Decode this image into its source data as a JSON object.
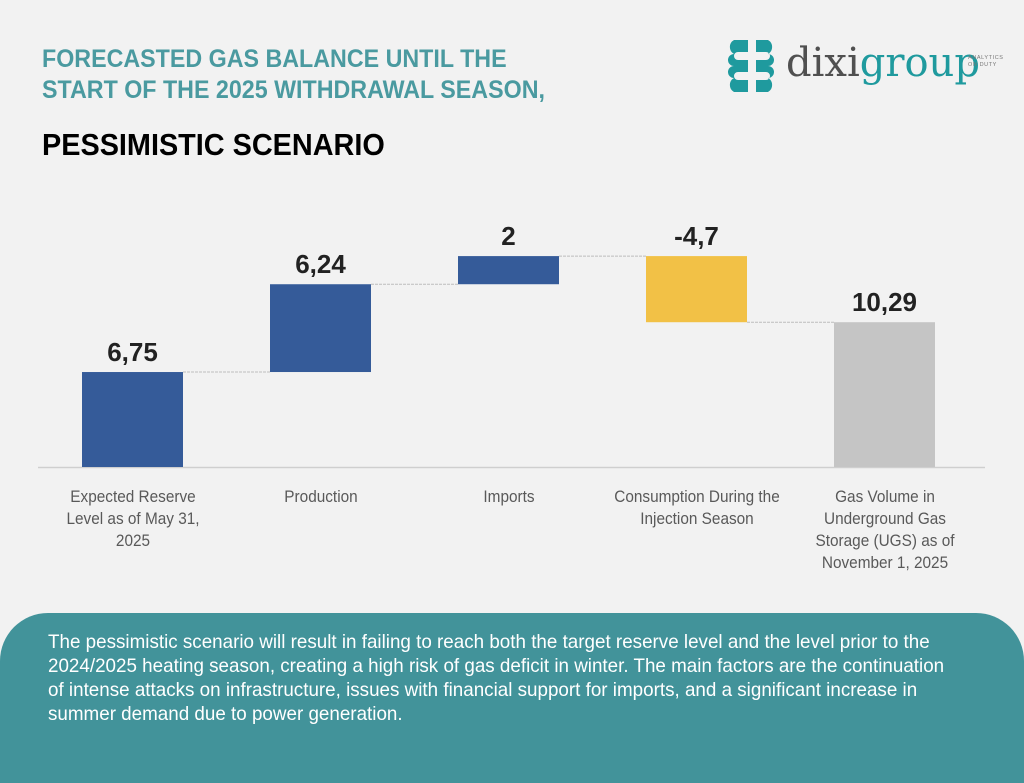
{
  "header": {
    "title_line1": "FORECASTED GAS BALANCE UNTIL THE",
    "title_line2": "START OF THE 2025 WITHDRAWAL SEASON,",
    "subtitle": "PESSIMISTIC SCENARIO"
  },
  "logo": {
    "icon": "dixigroup-brain-icon",
    "name_part1": "dixi",
    "name_part2": "group",
    "tagline_line1": "ANALYTICS",
    "tagline_line2": "ON DUTY"
  },
  "colors": {
    "title": "#4a9aa0",
    "increase": "#355b99",
    "decrease": "#f2c146",
    "total": "#c5c5c5",
    "panel": "#42939a"
  },
  "chart_data": {
    "type": "bar",
    "subtype": "waterfall",
    "title": "Forecasted gas balance until the start of the 2025 withdrawal season, pessimistic scenario",
    "xlabel": "",
    "ylabel": "",
    "ylim": [
      0,
      14.5
    ],
    "grid": false,
    "legend": "none",
    "categories": [
      "Expected Reserve Level as of May 31, 2025",
      "Production",
      "Imports",
      "Consumption During the Injection Season",
      "Gas Volume in Underground Gas Storage (UGS) as of November 1, 2025"
    ],
    "values": [
      6.75,
      6.24,
      2,
      -4.7,
      10.29
    ],
    "kinds": [
      "start",
      "increase",
      "increase",
      "decrease",
      "total"
    ],
    "labels": [
      "6,75",
      "6,24",
      "2",
      "-4,7",
      "10,29"
    ]
  },
  "footer": {
    "summary": "The pessimistic scenario will result in failing to reach both the target reserve level and the level prior to the 2024/2025 heating season, creating a high risk of gas deficit in winter. The main factors are the continuation of intense attacks on infrastructure, issues with financial support for imports, and a significant increase in summer demand due to power generation."
  }
}
